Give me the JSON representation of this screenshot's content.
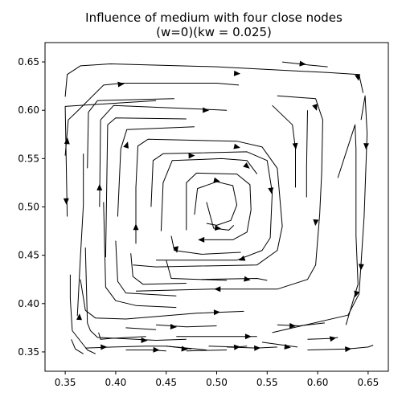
{
  "chart_data": {
    "type": "streamplot",
    "title": "Influence of medium with four close nodes",
    "subtitle": "(w=0)(kw = 0.025)",
    "xlabel": "",
    "ylabel": "",
    "xlim": [
      0.33,
      0.67
    ],
    "ylim": [
      0.33,
      0.67
    ],
    "x_ticks": [
      "0.35",
      "0.40",
      "0.45",
      "0.50",
      "0.55",
      "0.60",
      "0.65"
    ],
    "y_ticks": [
      "0.35",
      "0.40",
      "0.45",
      "0.50",
      "0.55",
      "0.60",
      "0.65"
    ],
    "grid": false,
    "legend": "none",
    "line_color": "#000000",
    "center": [
      0.5,
      0.5
    ],
    "flow_direction": "clockwise",
    "streamlines": [
      {
        "points": [
          [
            0.44,
            0.61
          ],
          [
            0.35,
            0.604
          ],
          [
            0.352,
            0.49
          ]
        ],
        "arrows": [
          [
            0.351,
            0.506
          ]
        ]
      },
      {
        "points": [
          [
            0.35,
            0.614
          ],
          [
            0.352,
            0.637
          ],
          [
            0.365,
            0.646
          ],
          [
            0.395,
            0.648
          ],
          [
            0.5,
            0.645
          ],
          [
            0.61,
            0.639
          ],
          [
            0.641,
            0.637
          ],
          [
            0.645,
            0.618
          ]
        ],
        "arrows": [
          [
            0.52,
            0.638
          ],
          [
            0.64,
            0.634
          ]
        ]
      },
      {
        "points": [
          [
            0.35,
            0.553
          ],
          [
            0.353,
            0.59
          ],
          [
            0.361,
            0.598
          ],
          [
            0.388,
            0.626
          ],
          [
            0.406,
            0.628
          ],
          [
            0.5,
            0.628
          ],
          [
            0.522,
            0.626
          ]
        ],
        "arrows": [
          [
            0.352,
            0.568
          ],
          [
            0.405,
            0.627
          ]
        ]
      },
      {
        "points": [
          [
            0.565,
            0.65
          ],
          [
            0.59,
            0.647
          ],
          [
            0.61,
            0.645
          ]
        ],
        "arrows": [
          [
            0.585,
            0.648
          ]
        ]
      },
      {
        "points": [
          [
            0.643,
            0.59
          ],
          [
            0.647,
            0.615
          ],
          [
            0.649,
            0.576
          ],
          [
            0.646,
            0.49
          ],
          [
            0.641,
            0.41
          ],
          [
            0.63,
            0.388
          ],
          [
            0.555,
            0.37
          ]
        ],
        "arrows": [
          [
            0.648,
            0.563
          ],
          [
            0.643,
            0.438
          ]
        ]
      },
      {
        "points": [
          [
            0.56,
            0.615
          ],
          [
            0.598,
            0.612
          ],
          [
            0.605,
            0.59
          ],
          [
            0.604,
            0.535
          ],
          [
            0.602,
            0.492
          ],
          [
            0.598,
            0.44
          ],
          [
            0.59,
            0.425
          ],
          [
            0.56,
            0.415
          ],
          [
            0.495,
            0.415
          ],
          [
            0.42,
            0.413
          ]
        ],
        "arrows": [
          [
            0.598,
            0.603
          ],
          [
            0.598,
            0.484
          ],
          [
            0.501,
            0.415
          ]
        ]
      },
      {
        "points": [
          [
            0.62,
            0.53
          ],
          [
            0.637,
            0.585
          ],
          [
            0.638,
            0.56
          ],
          [
            0.638,
            0.47
          ],
          [
            0.64,
            0.42
          ],
          [
            0.628,
            0.378
          ]
        ],
        "arrows": [
          [
            0.638,
            0.41
          ]
        ]
      },
      {
        "points": [
          [
            0.555,
            0.605
          ],
          [
            0.575,
            0.585
          ],
          [
            0.578,
            0.56
          ],
          [
            0.578,
            0.52
          ]
        ],
        "arrows": [
          [
            0.578,
            0.563
          ]
        ]
      },
      {
        "points": [
          [
            0.59,
            0.6
          ],
          [
            0.589,
            0.54
          ],
          [
            0.589,
            0.51
          ]
        ],
        "arrows": []
      },
      {
        "points": [
          [
            0.384,
            0.5
          ],
          [
            0.385,
            0.59
          ],
          [
            0.398,
            0.605
          ],
          [
            0.51,
            0.6
          ]
        ],
        "arrows": [
          [
            0.384,
            0.52
          ],
          [
            0.489,
            0.6
          ]
        ]
      },
      {
        "points": [
          [
            0.372,
            0.54
          ],
          [
            0.373,
            0.598
          ],
          [
            0.382,
            0.61
          ],
          [
            0.458,
            0.612
          ]
        ],
        "arrows": []
      },
      {
        "points": [
          [
            0.362,
            0.387
          ],
          [
            0.365,
            0.448
          ],
          [
            0.368,
            0.502
          ],
          [
            0.368,
            0.555
          ]
        ],
        "arrows": [
          [
            0.364,
            0.386
          ]
        ]
      },
      {
        "points": [
          [
            0.39,
            0.448
          ],
          [
            0.392,
            0.585
          ],
          [
            0.4,
            0.592
          ],
          [
            0.47,
            0.591
          ]
        ],
        "arrows": []
      },
      {
        "points": [
          [
            0.402,
            0.49
          ],
          [
            0.405,
            0.56
          ],
          [
            0.411,
            0.58
          ],
          [
            0.478,
            0.583
          ]
        ],
        "arrows": [
          [
            0.411,
            0.564
          ]
        ]
      },
      {
        "points": [
          [
            0.42,
            0.462
          ],
          [
            0.42,
            0.52
          ],
          [
            0.422,
            0.563
          ],
          [
            0.432,
            0.57
          ],
          [
            0.52,
            0.568
          ],
          [
            0.545,
            0.562
          ],
          [
            0.56,
            0.54
          ],
          [
            0.565,
            0.48
          ],
          [
            0.56,
            0.455
          ],
          [
            0.54,
            0.44
          ],
          [
            0.44,
            0.438
          ],
          [
            0.417,
            0.44
          ]
        ],
        "arrows": [
          [
            0.42,
            0.479
          ],
          [
            0.52,
            0.562
          ]
        ]
      },
      {
        "points": [
          [
            0.435,
            0.5
          ],
          [
            0.437,
            0.548
          ],
          [
            0.447,
            0.555
          ],
          [
            0.53,
            0.557
          ],
          [
            0.55,
            0.548
          ],
          [
            0.555,
            0.515
          ],
          [
            0.553,
            0.468
          ],
          [
            0.545,
            0.455
          ],
          [
            0.52,
            0.445
          ],
          [
            0.44,
            0.445
          ]
        ],
        "arrows": [
          [
            0.554,
            0.517
          ],
          [
            0.525,
            0.446
          ]
        ]
      },
      {
        "points": [
          [
            0.445,
            0.475
          ],
          [
            0.447,
            0.525
          ],
          [
            0.456,
            0.548
          ],
          [
            0.505,
            0.55
          ],
          [
            0.53,
            0.548
          ],
          [
            0.54,
            0.534
          ]
        ],
        "arrows": [
          [
            0.475,
            0.553
          ]
        ]
      },
      {
        "points": [
          [
            0.47,
            0.476
          ],
          [
            0.47,
            0.525
          ],
          [
            0.48,
            0.535
          ],
          [
            0.52,
            0.534
          ],
          [
            0.533,
            0.523
          ],
          [
            0.534,
            0.497
          ],
          [
            0.53,
            0.474
          ],
          [
            0.516,
            0.466
          ],
          [
            0.488,
            0.466
          ]
        ],
        "arrows": [
          [
            0.53,
            0.542
          ],
          [
            0.485,
            0.466
          ]
        ]
      },
      {
        "points": [
          [
            0.478,
            0.492
          ],
          [
            0.481,
            0.519
          ],
          [
            0.5,
            0.526
          ],
          [
            0.516,
            0.522
          ],
          [
            0.52,
            0.502
          ],
          [
            0.514,
            0.486
          ],
          [
            0.5,
            0.481
          ],
          [
            0.49,
            0.483
          ]
        ],
        "arrows": [
          [
            0.5,
            0.527
          ]
        ]
      },
      {
        "points": [
          [
            0.49,
            0.505
          ],
          [
            0.497,
            0.478
          ],
          [
            0.512,
            0.476
          ],
          [
            0.517,
            0.481
          ]
        ],
        "arrows": [
          [
            0.501,
            0.478
          ]
        ]
      },
      {
        "points": [
          [
            0.455,
            0.47
          ],
          [
            0.458,
            0.455
          ],
          [
            0.485,
            0.451
          ],
          [
            0.524,
            0.453
          ]
        ],
        "arrows": [
          [
            0.46,
            0.456
          ]
        ]
      },
      {
        "points": [
          [
            0.485,
            0.425
          ],
          [
            0.54,
            0.426
          ],
          [
            0.55,
            0.424
          ]
        ],
        "arrows": [
          [
            0.53,
            0.425
          ]
        ]
      },
      {
        "points": [
          [
            0.45,
            0.445
          ],
          [
            0.455,
            0.426
          ],
          [
            0.51,
            0.424
          ]
        ],
        "arrows": []
      },
      {
        "points": [
          [
            0.415,
            0.452
          ],
          [
            0.417,
            0.428
          ],
          [
            0.427,
            0.42
          ],
          [
            0.47,
            0.421
          ]
        ],
        "arrows": []
      },
      {
        "points": [
          [
            0.365,
            0.425
          ],
          [
            0.37,
            0.393
          ],
          [
            0.38,
            0.385
          ],
          [
            0.41,
            0.384
          ],
          [
            0.48,
            0.39
          ],
          [
            0.527,
            0.392
          ]
        ],
        "arrows": [
          [
            0.5,
            0.391
          ]
        ]
      },
      {
        "points": [
          [
            0.388,
            0.505
          ],
          [
            0.39,
            0.417
          ],
          [
            0.4,
            0.403
          ],
          [
            0.42,
            0.398
          ],
          [
            0.46,
            0.396
          ]
        ],
        "arrows": []
      },
      {
        "points": [
          [
            0.4,
            0.465
          ],
          [
            0.402,
            0.423
          ],
          [
            0.41,
            0.411
          ],
          [
            0.46,
            0.408
          ]
        ],
        "arrows": []
      },
      {
        "points": [
          [
            0.355,
            0.43
          ],
          [
            0.355,
            0.405
          ],
          [
            0.357,
            0.372
          ],
          [
            0.372,
            0.352
          ],
          [
            0.38,
            0.348
          ]
        ],
        "arrows": []
      },
      {
        "points": [
          [
            0.356,
            0.363
          ],
          [
            0.36,
            0.353
          ],
          [
            0.368,
            0.348
          ]
        ],
        "arrows": []
      },
      {
        "points": [
          [
            0.37,
            0.458
          ],
          [
            0.372,
            0.38
          ],
          [
            0.375,
            0.372
          ],
          [
            0.382,
            0.365
          ],
          [
            0.44,
            0.362
          ],
          [
            0.47,
            0.363
          ]
        ],
        "arrows": [
          [
            0.428,
            0.362
          ]
        ]
      },
      {
        "points": [
          [
            0.383,
            0.37
          ],
          [
            0.385,
            0.363
          ],
          [
            0.395,
            0.364
          ],
          [
            0.43,
            0.366
          ]
        ],
        "arrows": []
      },
      {
        "points": [
          [
            0.44,
            0.378
          ],
          [
            0.47,
            0.376
          ],
          [
            0.5,
            0.377
          ]
        ],
        "arrows": [
          [
            0.457,
            0.376
          ]
        ]
      },
      {
        "points": [
          [
            0.41,
            0.375
          ],
          [
            0.44,
            0.373
          ]
        ],
        "arrows": []
      },
      {
        "points": [
          [
            0.46,
            0.366
          ],
          [
            0.5,
            0.366
          ],
          [
            0.54,
            0.366
          ]
        ],
        "arrows": [
          [
            0.531,
            0.366
          ]
        ]
      },
      {
        "points": [
          [
            0.51,
            0.355
          ],
          [
            0.54,
            0.354
          ],
          [
            0.56,
            0.355
          ]
        ],
        "arrows": [
          [
            0.54,
            0.354
          ]
        ]
      },
      {
        "points": [
          [
            0.56,
            0.378
          ],
          [
            0.582,
            0.377
          ],
          [
            0.607,
            0.38
          ]
        ],
        "arrows": [
          [
            0.575,
            0.377
          ]
        ]
      },
      {
        "points": [
          [
            0.59,
            0.363
          ],
          [
            0.615,
            0.364
          ],
          [
            0.62,
            0.365
          ]
        ],
        "arrows": [
          [
            0.615,
            0.364
          ]
        ]
      },
      {
        "points": [
          [
            0.59,
            0.352
          ],
          [
            0.63,
            0.353
          ],
          [
            0.65,
            0.355
          ],
          [
            0.655,
            0.357
          ]
        ],
        "arrows": [
          [
            0.63,
            0.353
          ]
        ]
      },
      {
        "points": [
          [
            0.545,
            0.36
          ],
          [
            0.58,
            0.355
          ]
        ],
        "arrows": [
          [
            0.57,
            0.355
          ]
        ]
      },
      {
        "points": [
          [
            0.492,
            0.356
          ],
          [
            0.52,
            0.355
          ],
          [
            0.53,
            0.356
          ]
        ],
        "arrows": [
          [
            0.52,
            0.355
          ]
        ]
      },
      {
        "points": [
          [
            0.45,
            0.356
          ],
          [
            0.48,
            0.353
          ],
          [
            0.49,
            0.352
          ]
        ],
        "arrows": [
          [
            0.468,
            0.353
          ]
        ]
      },
      {
        "points": [
          [
            0.37,
            0.354
          ],
          [
            0.397,
            0.355
          ],
          [
            0.43,
            0.356
          ],
          [
            0.45,
            0.356
          ]
        ],
        "arrows": [
          [
            0.388,
            0.355
          ]
        ]
      },
      {
        "points": [
          [
            0.41,
            0.352
          ],
          [
            0.435,
            0.352
          ],
          [
            0.45,
            0.351
          ]
        ],
        "arrows": [
          [
            0.44,
            0.352
          ]
        ]
      },
      {
        "points": [
          [
            0.47,
            0.351
          ],
          [
            0.51,
            0.352
          ]
        ],
        "arrows": []
      },
      {
        "points": [
          [
            0.45,
            0.356
          ],
          [
            0.475,
            0.353
          ]
        ],
        "arrows": []
      }
    ]
  }
}
